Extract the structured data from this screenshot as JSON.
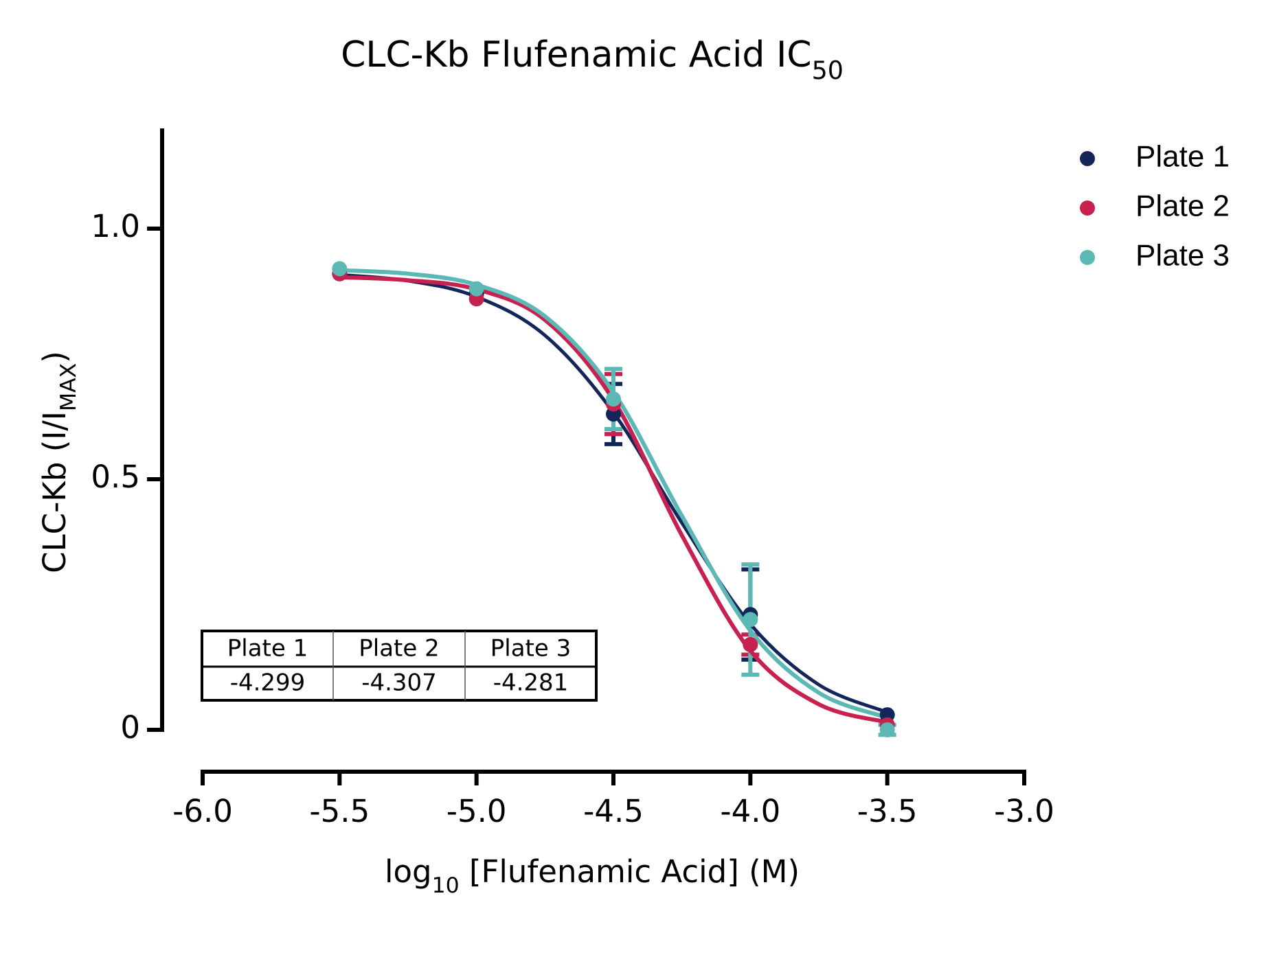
{
  "chart_data": {
    "type": "scatter",
    "title": [
      "CLC-Kb Flufenamic Acid IC",
      "50"
    ],
    "xlabel": [
      "log",
      "10",
      " [Flufenamic Acid] (M)"
    ],
    "ylabel": [
      "CLC-Kb (I/I",
      "MAX",
      ")"
    ],
    "x": [
      -5.5,
      -5.0,
      -4.5,
      -4.0,
      -3.5
    ],
    "fit_x": [
      -5.5,
      -5.25,
      -5.0,
      -4.75,
      -4.5,
      -4.25,
      -4.0,
      -3.75,
      -3.5
    ],
    "series": [
      {
        "name": "Plate 1",
        "color": "#13265a",
        "values": [
          0.91,
          0.87,
          0.63,
          0.23,
          0.03
        ],
        "errors": [
          null,
          null,
          0.06,
          0.09,
          null
        ],
        "fit_values": [
          0.908,
          0.896,
          0.864,
          0.787,
          0.633,
          0.413,
          0.211,
          0.09,
          0.035
        ]
      },
      {
        "name": "Plate 2",
        "color": "#c8204f",
        "values": [
          0.91,
          0.86,
          0.65,
          0.17,
          0.01
        ],
        "errors": [
          null,
          null,
          0.06,
          0.02,
          null
        ],
        "fit_values": [
          0.903,
          0.897,
          0.879,
          0.818,
          0.658,
          0.388,
          0.158,
          0.051,
          0.015
        ]
      },
      {
        "name": "Plate 3",
        "color": "#5bb8b4",
        "values": [
          0.92,
          0.88,
          0.66,
          0.22,
          0.0
        ],
        "errors": [
          null,
          null,
          0.06,
          0.11,
          0.01
        ],
        "fit_values": [
          0.917,
          0.91,
          0.888,
          0.825,
          0.674,
          0.427,
          0.198,
          0.074,
          0.0245
        ]
      }
    ],
    "xlim": [
      -6.0,
      -3.0
    ],
    "xticks": [
      {
        "value": -6,
        "label": "-6.0"
      },
      -5.5,
      {
        "value": -5,
        "label": "-5.0"
      },
      -4.5,
      {
        "value": -4,
        "label": "-4.0"
      },
      -3.5,
      {
        "value": -3,
        "label": "-3.0"
      }
    ],
    "ylim": [
      0,
      1.2
    ],
    "yticks": [
      0,
      0.5,
      {
        "value": 1,
        "label": "1.0"
      }
    ],
    "grid": false,
    "legend": "right",
    "ic50_table": {
      "header": [
        "Plate 1",
        "Plate 2",
        "Plate 3"
      ],
      "values": [
        -4.299,
        -4.307,
        -4.281
      ]
    }
  }
}
